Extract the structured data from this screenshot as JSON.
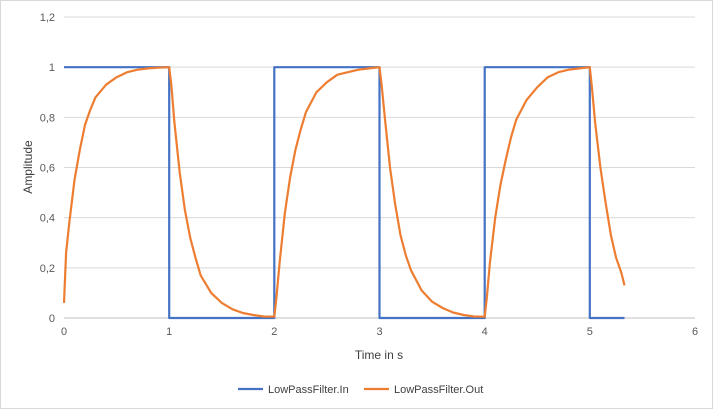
{
  "chart_data": {
    "type": "line",
    "title": "",
    "xlabel": "Time in s",
    "ylabel": "Amplitude",
    "xlim": [
      0,
      6
    ],
    "ylim": [
      0,
      1.2
    ],
    "x_ticks": [
      "0",
      "1",
      "2",
      "3",
      "4",
      "5",
      "6"
    ],
    "y_ticks": [
      "0",
      "0,2",
      "0,4",
      "0,6",
      "0,8",
      "1",
      "1,2"
    ],
    "grid": "horizontal",
    "legend_position": "bottom",
    "series": [
      {
        "name": "LowPassFilter.In",
        "color": "#4472C4",
        "x": [
          0,
          1,
          1,
          2,
          2,
          3,
          3,
          4,
          4,
          5,
          5,
          5.33
        ],
        "y": [
          1,
          1,
          0,
          0,
          1,
          1,
          0,
          0,
          1,
          1,
          0,
          0
        ]
      },
      {
        "name": "LowPassFilter.Out",
        "color": "#ED7D31",
        "x": [
          0,
          0.02,
          0.05,
          0.1,
          0.15,
          0.2,
          0.25,
          0.3,
          0.4,
          0.5,
          0.6,
          0.7,
          0.8,
          0.9,
          1.0,
          1.02,
          1.05,
          1.1,
          1.15,
          1.2,
          1.25,
          1.3,
          1.4,
          1.5,
          1.6,
          1.7,
          1.8,
          1.9,
          2.0,
          2.02,
          2.05,
          2.1,
          2.15,
          2.2,
          2.25,
          2.3,
          2.4,
          2.5,
          2.6,
          2.7,
          2.8,
          2.9,
          3.0,
          3.02,
          3.05,
          3.1,
          3.15,
          3.2,
          3.25,
          3.3,
          3.4,
          3.5,
          3.6,
          3.7,
          3.8,
          3.9,
          4.0,
          4.02,
          4.05,
          4.1,
          4.15,
          4.2,
          4.25,
          4.3,
          4.4,
          4.5,
          4.6,
          4.7,
          4.8,
          4.9,
          5.0,
          5.02,
          5.05,
          5.1,
          5.15,
          5.2,
          5.25,
          5.3,
          5.33
        ],
        "y": [
          0.06,
          0.26,
          0.38,
          0.55,
          0.67,
          0.77,
          0.83,
          0.88,
          0.93,
          0.96,
          0.98,
          0.99,
          0.995,
          0.998,
          1.0,
          0.93,
          0.78,
          0.58,
          0.43,
          0.32,
          0.24,
          0.17,
          0.1,
          0.06,
          0.035,
          0.02,
          0.012,
          0.006,
          0.005,
          0.08,
          0.22,
          0.42,
          0.56,
          0.67,
          0.75,
          0.82,
          0.9,
          0.94,
          0.97,
          0.98,
          0.99,
          0.995,
          1.0,
          0.93,
          0.8,
          0.6,
          0.45,
          0.33,
          0.25,
          0.19,
          0.11,
          0.065,
          0.04,
          0.022,
          0.012,
          0.006,
          0.005,
          0.08,
          0.22,
          0.4,
          0.53,
          0.63,
          0.72,
          0.79,
          0.87,
          0.92,
          0.96,
          0.98,
          0.99,
          0.995,
          1.0,
          0.92,
          0.78,
          0.6,
          0.46,
          0.33,
          0.24,
          0.18,
          0.13
        ]
      }
    ]
  }
}
